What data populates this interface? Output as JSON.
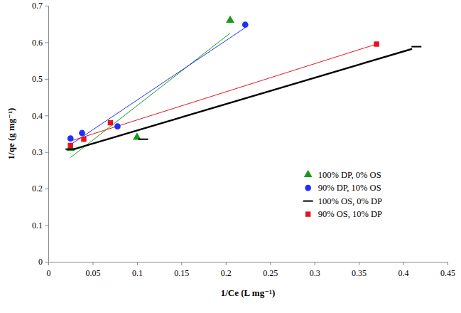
{
  "chart_data": {
    "type": "scatter",
    "x_label": "1/Ce (L mg⁻¹)",
    "y_label": "1/qe (g mg⁻¹)",
    "xlim": [
      0,
      0.45
    ],
    "xticks": [
      0,
      0.05,
      0.1,
      0.15,
      0.2,
      0.25,
      0.3,
      0.35,
      0.4,
      0.45
    ],
    "ylim": [
      0,
      0.7
    ],
    "yticks": [
      0,
      0.1,
      0.2,
      0.3,
      0.4,
      0.5,
      0.6,
      0.7
    ],
    "legend": "right",
    "series": [
      {
        "name": "100% DP, 0% OS",
        "color": "#1a9a1a",
        "marker": "triangle",
        "x": [
          0.025,
          0.1,
          0.205
        ],
        "values": [
          0.31,
          0.34,
          0.66
        ],
        "trend": {
          "x": [
            0.025,
            0.205
          ],
          "values": [
            0.285,
            0.625
          ]
        }
      },
      {
        "name": "90% DP, 10% OS",
        "color": "#1f2fff",
        "marker": "circle",
        "x": [
          0.025,
          0.038,
          0.078,
          0.222
        ],
        "values": [
          0.337,
          0.352,
          0.37,
          0.648
        ],
        "trend": {
          "x": [
            0.025,
            0.222
          ],
          "values": [
            0.32,
            0.64
          ]
        }
      },
      {
        "name": "100% OS, 0% DP",
        "color": "#000000",
        "marker": "dash",
        "x": [
          0.025,
          0.107,
          0.415
        ],
        "values": [
          0.308,
          0.335,
          0.588
        ],
        "trend": {
          "x": [
            0.025,
            0.41
          ],
          "values": [
            0.305,
            0.582
          ]
        }
      },
      {
        "name": "90% OS, 10% DP",
        "color": "#e8131b",
        "marker": "square",
        "x": [
          0.025,
          0.04,
          0.07,
          0.37
        ],
        "values": [
          0.318,
          0.335,
          0.38,
          0.595
        ],
        "trend": {
          "x": [
            0.025,
            0.37
          ],
          "values": [
            0.33,
            0.595
          ]
        }
      }
    ]
  }
}
